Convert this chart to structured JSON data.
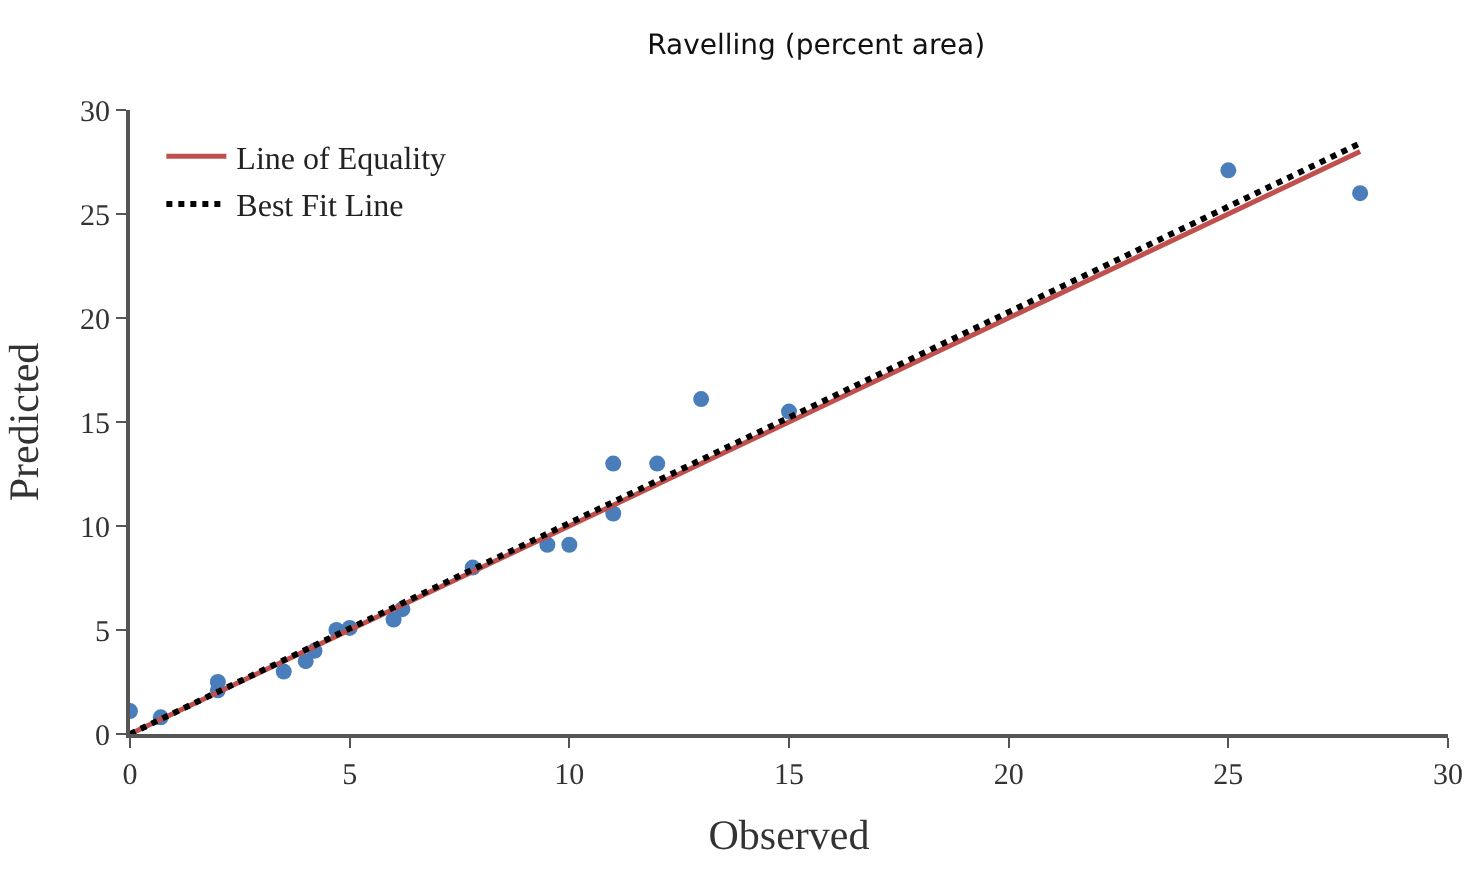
{
  "chart_data": {
    "type": "scatter",
    "title": "Ravelling (percent area)",
    "xlabel": "Observed",
    "ylabel": "Predicted",
    "xlim": [
      0,
      30
    ],
    "ylim": [
      0,
      30
    ],
    "xticks": [
      0,
      5,
      10,
      15,
      20,
      25,
      30
    ],
    "yticks": [
      0,
      5,
      10,
      15,
      20,
      25,
      30
    ],
    "legend": "top left",
    "series": [
      {
        "color": "#4a7ebb",
        "marker": "circle",
        "x": [
          0,
          0.7,
          2,
          2,
          3.5,
          4,
          4.2,
          4.7,
          5,
          6,
          6.2,
          7.8,
          9.5,
          10,
          11,
          11,
          12,
          13,
          15,
          25,
          28
        ],
        "values": [
          1.1,
          0.8,
          2.5,
          2.1,
          3.0,
          3.5,
          4.0,
          5.0,
          5.1,
          5.5,
          6.0,
          8.0,
          9.1,
          9.1,
          13,
          10.6,
          13,
          16.1,
          15.5,
          27.1,
          26
        ]
      },
      {
        "type": "line",
        "name": "Line of Equality",
        "color": "#c0504d",
        "line_style": "solid",
        "x": [
          0,
          28
        ],
        "values": [
          0,
          28
        ]
      },
      {
        "type": "line",
        "name": "Best Fit Line",
        "color": "#000000",
        "line_style": "dotted",
        "x": [
          0,
          28
        ],
        "values": [
          0,
          28.4
        ]
      }
    ]
  }
}
